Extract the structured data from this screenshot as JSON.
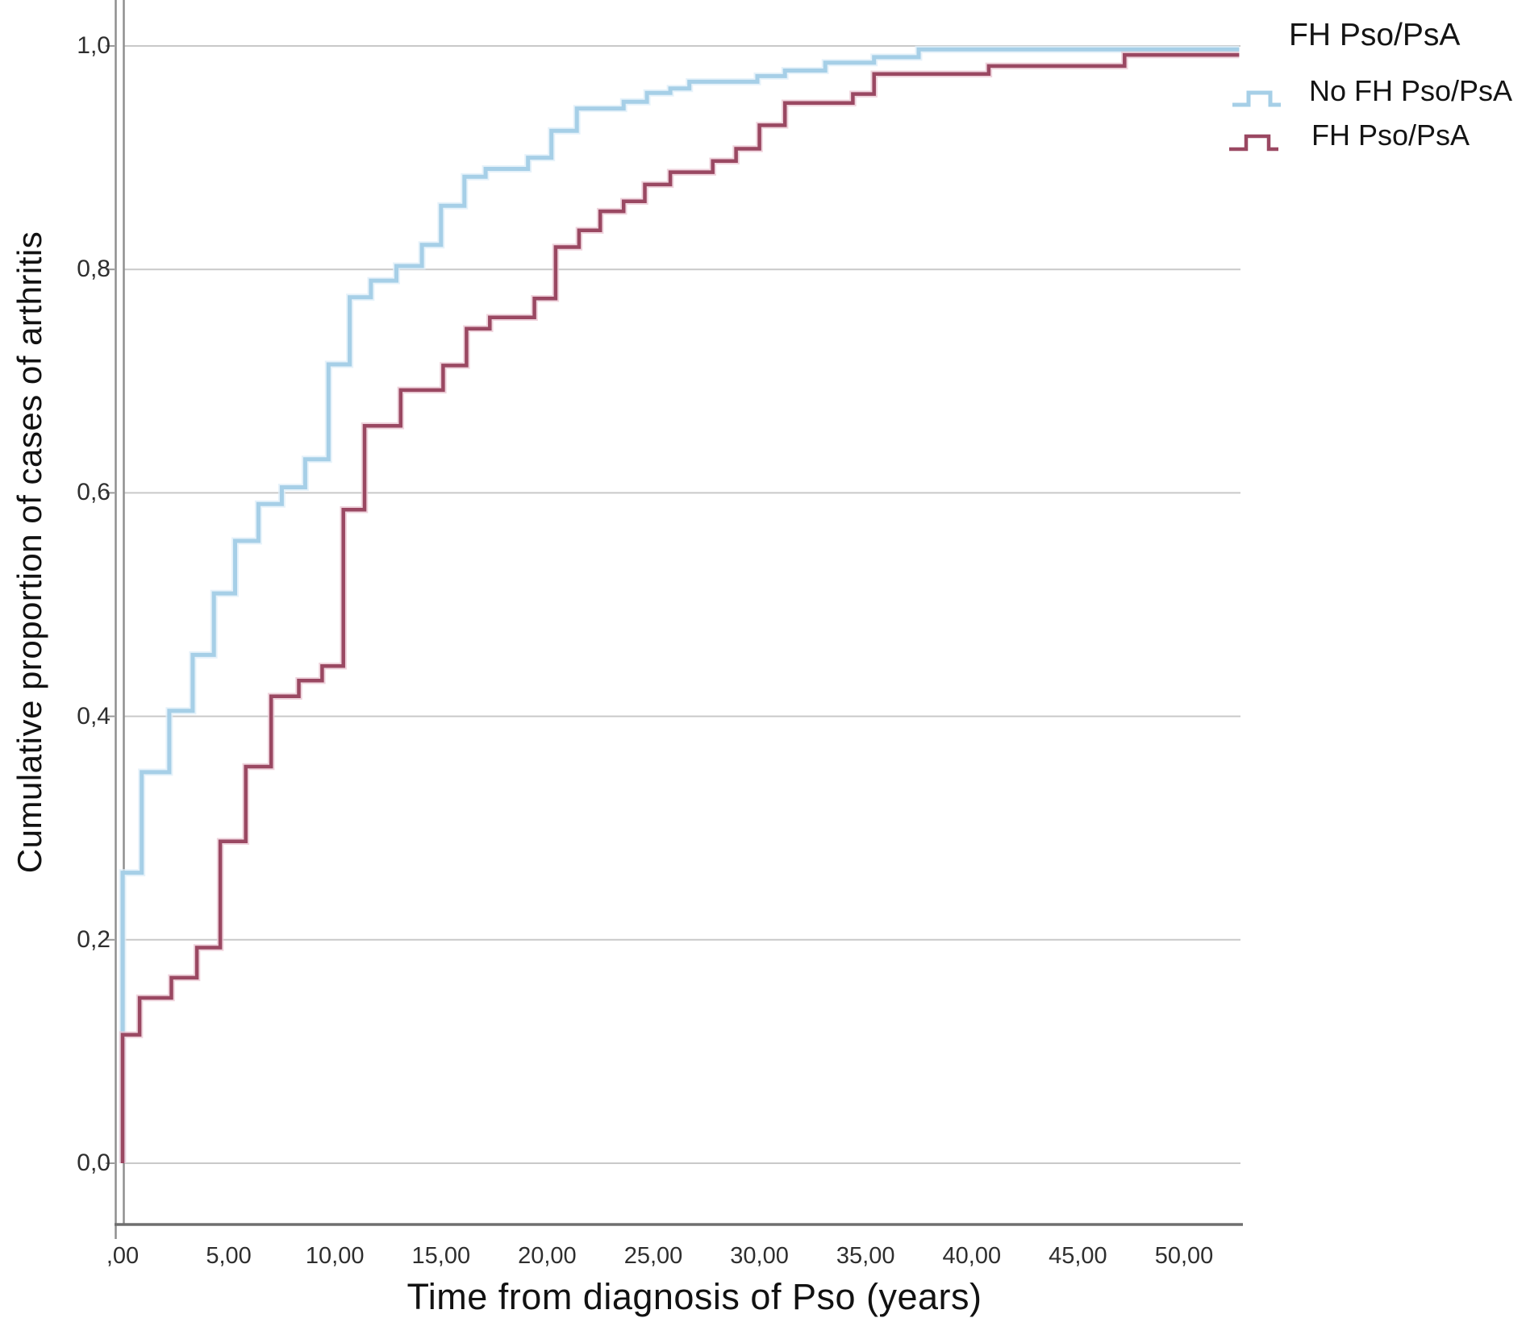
{
  "figure": {
    "x_axis_title": "Time from diagnosis of Pso (years)",
    "y_axis_title": "Cumulative proportion of cases of arthritis",
    "legend": {
      "title": "FH Pso/PsA",
      "entries": [
        {
          "id": "no-fh",
          "label": "No FH Pso/PsA",
          "color": "#a6cfe7",
          "halo": "#ddeef8"
        },
        {
          "id": "fh",
          "label": "FH Pso/PsA",
          "color": "#9a4862",
          "halo": "#e9c6d1"
        }
      ]
    },
    "colors": {
      "gridline": "#c9c9c9",
      "axis_line": "#8f8f8f",
      "bottom_axis_line": "#6f6f6f",
      "tick_mark": "#9a9a9a",
      "tick_text": "#2e2e2e",
      "title_text": "#121212",
      "background": "#ffffff"
    }
  },
  "chart_data": {
    "type": "line",
    "step": true,
    "title": "",
    "xlabel": "Time from diagnosis of Pso (years)",
    "ylabel": "Cumulative proportion of cases of arthritis",
    "xlim": [
      0,
      52.6
    ],
    "ylim": [
      0,
      1.04
    ],
    "grid": "horizontal",
    "legend_position": "top-right",
    "legend_title": "FH Pso/PsA",
    "x_ticks": {
      "values": [
        0,
        5,
        10,
        15,
        20,
        25,
        30,
        35,
        40,
        45,
        50
      ],
      "labels": [
        ",00",
        "5,00",
        "10,00",
        "15,00",
        "20,00",
        "25,00",
        "30,00",
        "35,00",
        "40,00",
        "45,00",
        "50,00"
      ]
    },
    "y_ticks": {
      "values": [
        0.0,
        0.2,
        0.4,
        0.6,
        0.8,
        1.0
      ],
      "labels": [
        "0,0",
        "0,2",
        "0,4",
        "0,6",
        "0,8",
        "1,0"
      ]
    },
    "x_end": 52.6,
    "series": [
      {
        "name": "No FH Pso/PsA",
        "color": "#a6cfe7",
        "halo": "#ddeef8",
        "width": 5,
        "points": [
          [
            0,
            0.26
          ],
          [
            0.9,
            0.35
          ],
          [
            2.2,
            0.405
          ],
          [
            3.3,
            0.455
          ],
          [
            4.3,
            0.51
          ],
          [
            5.3,
            0.557
          ],
          [
            6.4,
            0.59
          ],
          [
            7.5,
            0.605
          ],
          [
            8.6,
            0.63
          ],
          [
            9.7,
            0.715
          ],
          [
            10.7,
            0.775
          ],
          [
            11.7,
            0.79
          ],
          [
            12.9,
            0.803
          ],
          [
            14.1,
            0.822
          ],
          [
            15.0,
            0.857
          ],
          [
            16.1,
            0.883
          ],
          [
            17.1,
            0.89
          ],
          [
            19.1,
            0.9
          ],
          [
            20.2,
            0.924
          ],
          [
            21.4,
            0.944
          ],
          [
            23.6,
            0.95
          ],
          [
            24.7,
            0.958
          ],
          [
            25.8,
            0.962
          ],
          [
            26.7,
            0.968
          ],
          [
            29.9,
            0.973
          ],
          [
            31.2,
            0.978
          ],
          [
            33.1,
            0.985
          ],
          [
            35.4,
            0.99
          ],
          [
            37.5,
            0.997
          ]
        ]
      },
      {
        "name": "FH Pso/PsA",
        "color": "#9a4862",
        "halo": "#e9c6d1",
        "width": 4.5,
        "points": [
          [
            0,
            0.115
          ],
          [
            0.8,
            0.148
          ],
          [
            2.3,
            0.166
          ],
          [
            3.5,
            0.193
          ],
          [
            4.6,
            0.288
          ],
          [
            5.8,
            0.355
          ],
          [
            7.0,
            0.418
          ],
          [
            8.3,
            0.432
          ],
          [
            9.4,
            0.445
          ],
          [
            10.4,
            0.585
          ],
          [
            11.4,
            0.66
          ],
          [
            13.1,
            0.692
          ],
          [
            15.1,
            0.714
          ],
          [
            16.2,
            0.747
          ],
          [
            17.3,
            0.757
          ],
          [
            19.4,
            0.774
          ],
          [
            20.4,
            0.82
          ],
          [
            21.5,
            0.835
          ],
          [
            22.5,
            0.852
          ],
          [
            23.6,
            0.861
          ],
          [
            24.6,
            0.876
          ],
          [
            25.8,
            0.887
          ],
          [
            27.8,
            0.897
          ],
          [
            28.9,
            0.908
          ],
          [
            30.0,
            0.929
          ],
          [
            31.2,
            0.949
          ],
          [
            34.4,
            0.957
          ],
          [
            35.4,
            0.975
          ],
          [
            40.8,
            0.982
          ],
          [
            47.2,
            0.992
          ]
        ]
      }
    ]
  }
}
